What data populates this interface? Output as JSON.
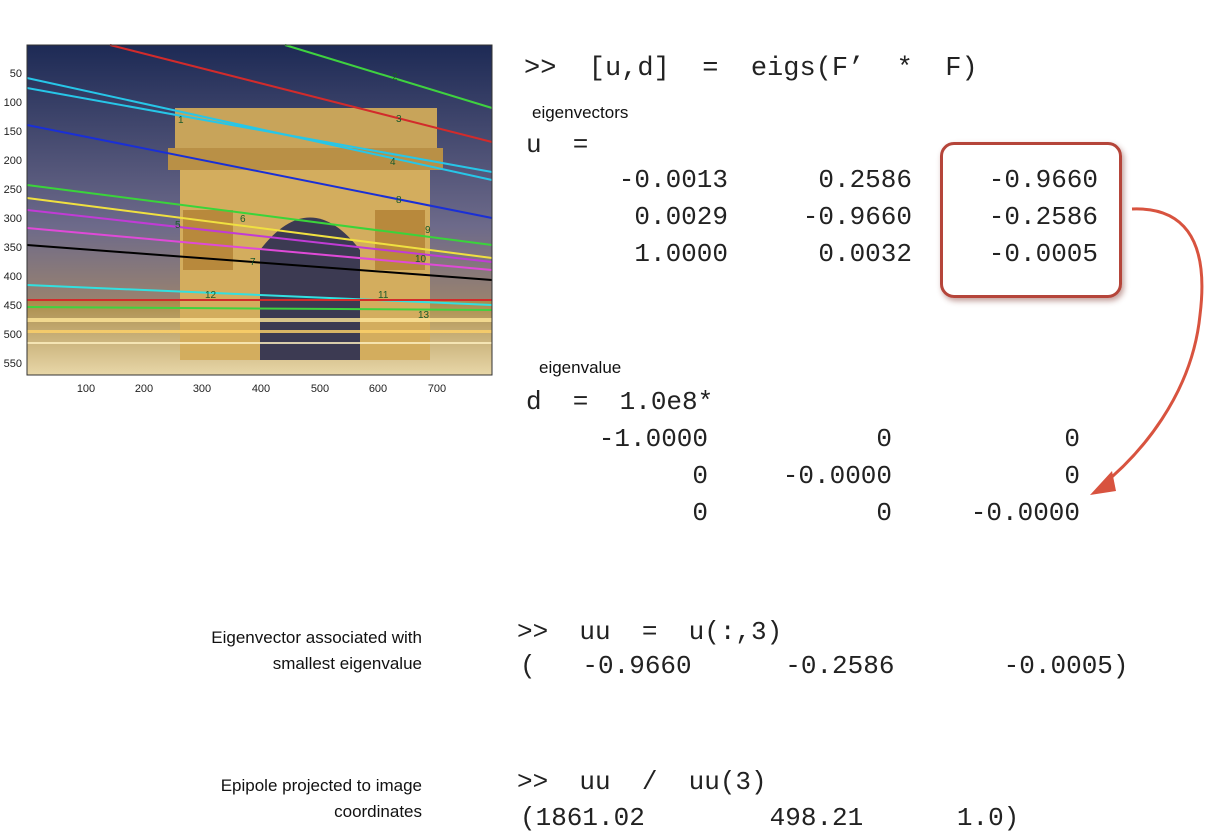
{
  "plot": {
    "y_ticks": [
      "50",
      "100",
      "150",
      "200",
      "250",
      "300",
      "350",
      "400",
      "450",
      "500",
      "550"
    ],
    "x_ticks": [
      "100",
      "200",
      "300",
      "400",
      "500",
      "600",
      "700"
    ],
    "point_labels": [
      "1",
      "2",
      "3",
      "4",
      "5",
      "6",
      "7",
      "8",
      "9",
      "10",
      "11",
      "12",
      "13"
    ],
    "line_colors": [
      "#d22b2b",
      "#3fd23f",
      "#27c6e8",
      "#1a2fd6",
      "#3ad43a",
      "#f0e040",
      "#c13bd6",
      "#e04ad8",
      "#000000",
      "#32e0e0",
      "#d22b2b"
    ]
  },
  "cmd1": ">>  [u,d]  =  eigs(F’  *  F)",
  "label_eigenvectors": "eigenvectors",
  "u_eq": "u  =",
  "u": [
    [
      "-0.0013",
      "0.2586",
      "-0.9660"
    ],
    [
      "0.0029",
      "-0.9660",
      "-0.2586"
    ],
    [
      "1.0000",
      "0.0032",
      "-0.0005"
    ]
  ],
  "label_eigenvalue": "eigenvalue",
  "d_eq": "d  =  1.0e8*",
  "d": [
    [
      "-1.0000",
      "0",
      "0"
    ],
    [
      "0",
      "-0.0000",
      "0"
    ],
    [
      "0",
      "0",
      "-0.0000"
    ]
  ],
  "caption1": [
    "Eigenvector associated with",
    "smallest eigenvalue"
  ],
  "cmd2": ">>  uu  =  u(:,3)",
  "result2": "(   -0.9660      -0.2586       -0.0005)",
  "caption2": [
    "Epipole projected to image",
    "coordinates"
  ],
  "cmd3": ">>  uu  /  uu(3)",
  "result3": "(1861.02        498.21      1.0)",
  "colors": {
    "highlight": "#b5453a",
    "arrow": "#d8533f"
  }
}
